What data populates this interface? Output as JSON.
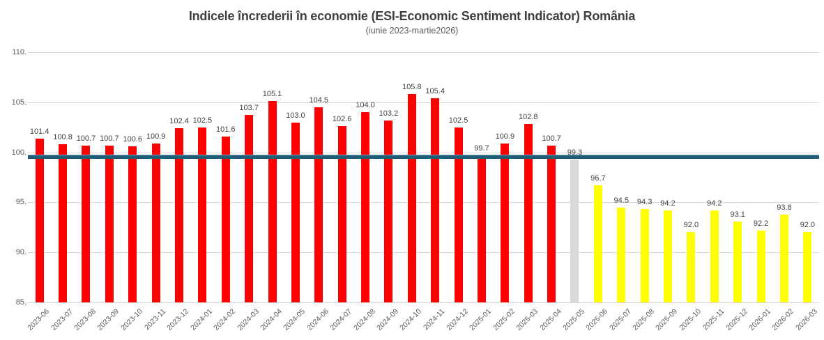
{
  "chart_data": {
    "type": "bar",
    "title": "Indicele încrederii în economie (ESI-Economic Sentiment Indicator) România",
    "subtitle": "(iunie 2023-martie2026)",
    "categories": [
      "2023-06",
      "2023-07",
      "2023-08",
      "2023-09",
      "2023-10",
      "2023-11",
      "2023-12",
      "2024-01",
      "2024-02",
      "2024-03",
      "2024-04",
      "2024-05",
      "2024-06",
      "2024-07",
      "2024-08",
      "2024-09",
      "2024-10",
      "2024-11",
      "2024-12",
      "2025-01",
      "2025-02",
      "2025-03",
      "2025-04",
      "2025-05",
      "2025-06",
      "2025-07",
      "2025-08",
      "2025-09",
      "2025-10",
      "2025-11",
      "2025-12",
      "2026-01",
      "2026-02",
      "2026-03"
    ],
    "values": [
      101.4,
      100.8,
      100.7,
      100.7,
      100.6,
      100.9,
      102.4,
      102.5,
      101.6,
      103.7,
      105.1,
      103.0,
      104.5,
      102.6,
      104.0,
      103.2,
      105.8,
      105.4,
      102.5,
      99.7,
      100.9,
      102.8,
      100.7,
      99.3,
      96.7,
      94.5,
      94.3,
      94.2,
      92.0,
      94.2,
      93.1,
      92.2,
      93.8,
      92.0
    ],
    "bar_colors": [
      "#ff0000",
      "#ff0000",
      "#ff0000",
      "#ff0000",
      "#ff0000",
      "#ff0000",
      "#ff0000",
      "#ff0000",
      "#ff0000",
      "#ff0000",
      "#ff0000",
      "#ff0000",
      "#ff0000",
      "#ff0000",
      "#ff0000",
      "#ff0000",
      "#ff0000",
      "#ff0000",
      "#ff0000",
      "#ff0000",
      "#ff0000",
      "#ff0000",
      "#ff0000",
      "#d9d9d9",
      "#ffff00",
      "#ffff00",
      "#ffff00",
      "#ffff00",
      "#ffff00",
      "#ffff00",
      "#ffff00",
      "#ffff00",
      "#ffff00",
      "#ffff00"
    ],
    "value_label_decimals": 1,
    "ylim": [
      85,
      110
    ],
    "ytick_values": [
      110,
      105,
      100,
      95,
      90,
      85
    ],
    "ytick_labels": [
      "110.",
      "105.",
      "100.",
      "95.",
      "90.",
      "85."
    ],
    "grid": "horizontal",
    "legend": "none",
    "reference_line": {
      "value": 99.6,
      "color": "#1f5c78"
    }
  },
  "colors": {
    "actual_bar": "#ff0000",
    "transition_bar": "#d9d9d9",
    "forecast_bar": "#ffff00",
    "reference_line": "#1f5c78",
    "gridline": "#d9d9d9",
    "title_text": "#3f3f3f",
    "axis_text": "#595959",
    "value_label_text": "#404040",
    "background": "#ffffff"
  }
}
